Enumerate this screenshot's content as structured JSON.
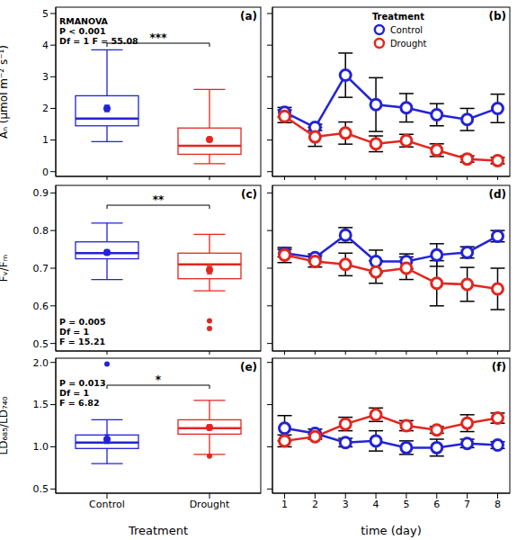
{
  "chart_data": [
    {
      "panel_label": "(a)",
      "type": "box",
      "categories": [
        "Control",
        "Drought"
      ],
      "y_label": "Aₙ (μmol m⁻² s⁻¹)",
      "ylim": [
        -0.15,
        5.2
      ],
      "yticks": [
        0,
        1,
        2,
        3,
        4,
        5
      ],
      "tick_labels": "y",
      "stats": [
        "RMANOVA",
        "P < 0.001",
        "Df = 1 F = 55.08"
      ],
      "significance": "***",
      "series": [
        {
          "name": "Control",
          "color": "#2323d6",
          "whisker_low": 0.95,
          "q1": 1.45,
          "median": 1.68,
          "q3": 2.4,
          "whisker_high": 3.85,
          "mean": 2.0,
          "mean_error": 0.1,
          "outliers": []
        },
        {
          "name": "Drought",
          "color": "#e3261f",
          "whisker_low": 0.25,
          "q1": 0.55,
          "median": 0.82,
          "q3": 1.38,
          "whisker_high": 2.6,
          "mean": 1.02,
          "mean_error": 0.07,
          "outliers": []
        }
      ]
    },
    {
      "panel_label": "(b)",
      "type": "line",
      "x": [
        1,
        2,
        3,
        4,
        5,
        6,
        7,
        8
      ],
      "xlim": [
        0.6,
        8.4
      ],
      "xticks": [
        1,
        2,
        3,
        4,
        5,
        6,
        7,
        8
      ],
      "ylim": [
        -0.15,
        5.2
      ],
      "yticks": [
        0,
        1,
        2,
        3,
        4,
        5
      ],
      "tick_labels": false,
      "legend": "top",
      "legend_title": "Treatment",
      "series": [
        {
          "name": "Control",
          "color": "#2323d6",
          "marker": "circle",
          "values": [
            1.88,
            1.4,
            3.05,
            2.12,
            2.02,
            1.8,
            1.65,
            2.0
          ],
          "errors": [
            0.15,
            0.1,
            0.7,
            0.85,
            0.45,
            0.35,
            0.35,
            0.45
          ]
        },
        {
          "name": "Drought",
          "color": "#e3261f",
          "marker": "circle",
          "values": [
            1.75,
            1.1,
            1.22,
            0.88,
            0.98,
            0.68,
            0.4,
            0.35
          ],
          "errors": [
            0.2,
            0.3,
            0.35,
            0.25,
            0.2,
            0.2,
            0.1,
            0.1
          ]
        }
      ]
    },
    {
      "panel_label": "(c)",
      "type": "box",
      "categories": [
        "Control",
        "Drought"
      ],
      "y_label": "Fᵥ/Fₘ",
      "ylim": [
        0.48,
        0.92
      ],
      "yticks": [
        0.5,
        0.6,
        0.7,
        0.8,
        0.9
      ],
      "tick_labels": "y",
      "stats": [
        "P = 0.005",
        "Df = 1",
        "F = 15.21"
      ],
      "significance": "**",
      "series": [
        {
          "name": "Control",
          "color": "#2323d6",
          "whisker_low": 0.67,
          "q1": 0.725,
          "median": 0.74,
          "q3": 0.77,
          "whisker_high": 0.82,
          "mean": 0.742,
          "mean_error": 0.007,
          "outliers": []
        },
        {
          "name": "Drought",
          "color": "#e3261f",
          "whisker_low": 0.64,
          "q1": 0.672,
          "median": 0.71,
          "q3": 0.74,
          "whisker_high": 0.79,
          "mean": 0.695,
          "mean_error": 0.01,
          "outliers": [
            0.56,
            0.54
          ]
        }
      ]
    },
    {
      "panel_label": "(d)",
      "type": "line",
      "x": [
        1,
        2,
        3,
        4,
        5,
        6,
        7,
        8
      ],
      "xlim": [
        0.6,
        8.4
      ],
      "xticks": [
        1,
        2,
        3,
        4,
        5,
        6,
        7,
        8
      ],
      "ylim": [
        0.48,
        0.92
      ],
      "yticks": [
        0.5,
        0.6,
        0.7,
        0.8,
        0.9
      ],
      "tick_labels": false,
      "series": [
        {
          "name": "Control",
          "color": "#2323d6",
          "marker": "circle",
          "values": [
            0.74,
            0.728,
            0.788,
            0.718,
            0.718,
            0.735,
            0.742,
            0.785
          ],
          "errors": [
            0.01,
            0.01,
            0.02,
            0.03,
            0.02,
            0.03,
            0.015,
            0.015
          ]
        },
        {
          "name": "Drought",
          "color": "#e3261f",
          "marker": "circle",
          "values": [
            0.735,
            0.718,
            0.71,
            0.69,
            0.7,
            0.66,
            0.657,
            0.645
          ],
          "errors": [
            0.02,
            0.015,
            0.03,
            0.03,
            0.03,
            0.06,
            0.045,
            0.055
          ]
        }
      ]
    },
    {
      "panel_label": "(e)",
      "type": "box",
      "categories": [
        "Control",
        "Drought"
      ],
      "x_label": "Treatment",
      "y_label": "LD₆₈₅/LD₇₄₀",
      "ylim": [
        0.45,
        2.05
      ],
      "yticks": [
        0.5,
        {
          "value": 1,
          "label": "1.0"
        },
        1.5,
        {
          "value": 2,
          "label": "2.0"
        }
      ],
      "stats": [
        "P = 0.013",
        "Df = 1",
        "F = 6.82"
      ],
      "significance": "*",
      "series": [
        {
          "name": "Control",
          "color": "#2323d6",
          "whisker_low": 0.8,
          "q1": 0.98,
          "median": 1.05,
          "q3": 1.14,
          "whisker_high": 1.32,
          "mean": 1.09,
          "mean_error": 0.05,
          "outliers": [
            1.98
          ]
        },
        {
          "name": "Drought",
          "color": "#e3261f",
          "whisker_low": 0.91,
          "q1": 1.15,
          "median": 1.22,
          "q3": 1.32,
          "whisker_high": 1.55,
          "mean": 1.23,
          "mean_error": 0.03,
          "outliers": [
            0.89
          ]
        }
      ]
    },
    {
      "panel_label": "(f)",
      "type": "line",
      "x": [
        1,
        2,
        3,
        4,
        5,
        6,
        7,
        8
      ],
      "x_label": "time (day)",
      "xlim": [
        0.6,
        8.4
      ],
      "xticks": [
        1,
        2,
        3,
        4,
        5,
        6,
        7,
        8
      ],
      "ylim": [
        0.45,
        2.05
      ],
      "yticks": [
        0.5,
        {
          "value": 1,
          "label": "1.0"
        },
        1.5,
        {
          "value": 2,
          "label": "2.0"
        }
      ],
      "tick_labels": "x",
      "series": [
        {
          "name": "Control",
          "color": "#2323d6",
          "marker": "circle",
          "values": [
            1.22,
            1.16,
            1.05,
            1.07,
            0.99,
            0.99,
            1.04,
            1.02
          ],
          "errors": [
            0.15,
            0.05,
            0.05,
            0.12,
            0.08,
            0.1,
            0.05,
            0.04
          ]
        },
        {
          "name": "Drought",
          "color": "#e3261f",
          "marker": "circle",
          "values": [
            1.07,
            1.12,
            1.27,
            1.38,
            1.25,
            1.2,
            1.28,
            1.34
          ],
          "errors": [
            0.07,
            0.03,
            0.08,
            0.08,
            0.06,
            0.04,
            0.1,
            0.06
          ]
        }
      ]
    }
  ]
}
